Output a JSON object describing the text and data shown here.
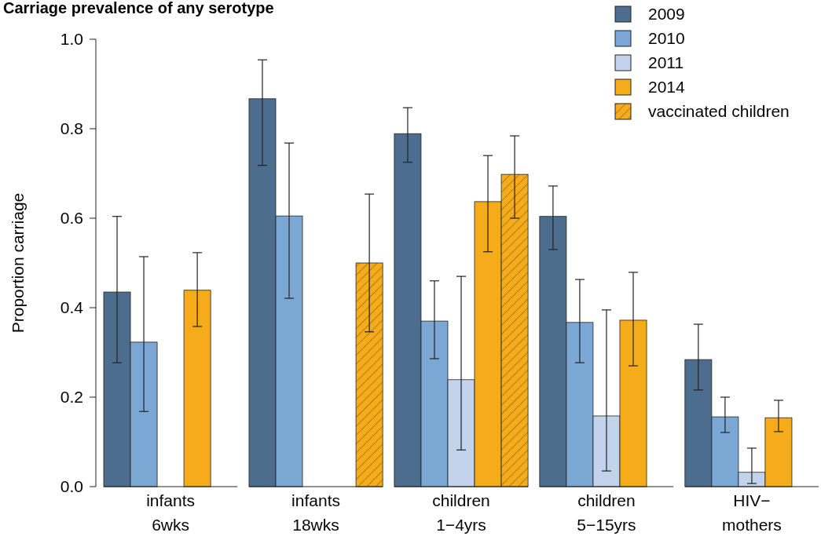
{
  "chart_data": {
    "type": "bar",
    "title": "Carriage prevalence of any serotype",
    "ylabel": "Proportion carriage",
    "categories": [
      "infants\n6wks",
      "infants\n18wks",
      "children\n1−4yrs",
      "children\n5−15yrs",
      "HIV−\nmothers"
    ],
    "series": [
      {
        "name": "2009",
        "color": "#4d6d8e",
        "values": [
          0.435,
          0.867,
          0.789,
          0.604,
          0.284
        ],
        "errors": [
          [
            0.277,
            0.604
          ],
          [
            0.718,
            0.954
          ],
          [
            0.725,
            0.847
          ],
          [
            0.53,
            0.672
          ],
          [
            0.216,
            0.363
          ]
        ]
      },
      {
        "name": "2010",
        "color": "#7ba7d4",
        "values": [
          0.323,
          0.605,
          0.37,
          0.367,
          0.156
        ],
        "errors": [
          [
            0.168,
            0.514
          ],
          [
            0.421,
            0.768
          ],
          [
            0.286,
            0.46
          ],
          [
            0.277,
            0.463
          ],
          [
            0.121,
            0.2
          ]
        ]
      },
      {
        "name": "2011",
        "color": "#c3d3ec",
        "values": [
          null,
          null,
          0.239,
          0.158,
          0.032
        ],
        "errors": [
          null,
          null,
          [
            0.082,
            0.47
          ],
          [
            0.035,
            0.395
          ],
          [
            0.007,
            0.086
          ]
        ]
      },
      {
        "name": "2014",
        "color": "#f6ab1a",
        "values": [
          0.439,
          null,
          0.637,
          0.372,
          0.154
        ],
        "errors": [
          [
            0.358,
            0.523
          ],
          null,
          [
            0.525,
            0.74
          ],
          [
            0.27,
            0.479
          ],
          [
            0.123,
            0.193
          ]
        ]
      },
      {
        "name": "vaccinated children",
        "color": "#f6ab1a",
        "values": [
          null,
          0.5,
          0.698,
          null,
          null
        ],
        "errors": [
          null,
          [
            0.346,
            0.654
          ],
          [
            0.6,
            0.784
          ],
          null,
          null
        ]
      }
    ],
    "ylim": [
      0,
      1
    ],
    "yticks": [
      {
        "value": 0,
        "label": "0.0"
      },
      0.2,
      0.4,
      0.6,
      0.8,
      {
        "value": 1,
        "label": "1.0"
      }
    ],
    "legend": "top right",
    "grid": false
  }
}
